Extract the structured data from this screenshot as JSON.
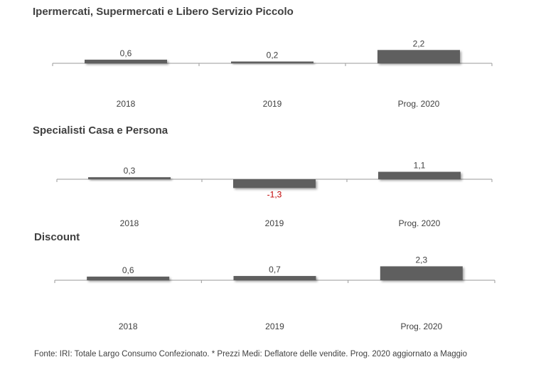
{
  "chart_data": [
    {
      "type": "bar",
      "title": "Ipermercati,  Supermercati e Libero Servizio Piccolo",
      "categories": [
        "2018",
        "2019",
        "Prog. 2020"
      ],
      "values": [
        0.6,
        0.2,
        2.2
      ],
      "value_labels": [
        "0,6",
        "0,2",
        "2,2"
      ],
      "colors": {
        "bar": "#5f5f5f",
        "positive_label": "#404040",
        "negative_label": "#c00000"
      }
    },
    {
      "type": "bar",
      "title": "Specialisti  Casa e Persona",
      "categories": [
        "2018",
        "2019",
        "Prog. 2020"
      ],
      "values": [
        0.3,
        -1.3,
        1.1
      ],
      "value_labels": [
        "0,3",
        "-1,3",
        "1,1"
      ],
      "colors": {
        "bar": "#5f5f5f",
        "positive_label": "#404040",
        "negative_label": "#c00000"
      }
    },
    {
      "type": "bar",
      "title": "Discount",
      "categories": [
        "2018",
        "2019",
        "Prog. 2020"
      ],
      "values": [
        0.6,
        0.7,
        2.3
      ],
      "value_labels": [
        "0,6",
        "0,7",
        "2,3"
      ],
      "colors": {
        "bar": "#5f5f5f",
        "positive_label": "#404040",
        "negative_label": "#c00000"
      }
    }
  ],
  "footer": "Fonte: IRI: Totale Largo Consumo Confezionato.  * Prezzi  Medi: Deflatore delle vendite.  Prog. 2020 aggiornato a Maggio"
}
